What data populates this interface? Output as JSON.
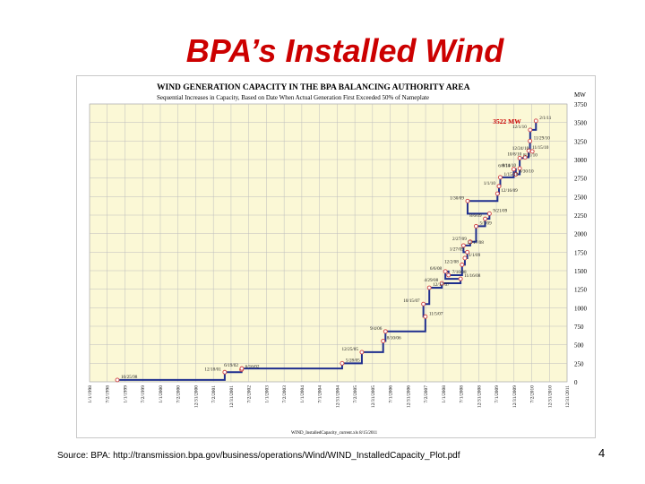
{
  "slide": {
    "title": "BPA’s Installed Wind",
    "source": "Source: BPA: http://transmission.bpa.gov/business/operations/Wind/WIND_InstalledCapacity_Plot.pdf",
    "number": "4"
  },
  "chart_data": {
    "type": "line",
    "title": "WIND GENERATION CAPACITY IN THE BPA BALANCING AUTHORITY AREA",
    "subtitle": "Sequential Increases in Capacity, Based on Date When Actual Generation First Exceeded 50% of Nameplate",
    "ylabel": "MW",
    "ylim": [
      0,
      3750
    ],
    "y_ticks": [
      0,
      250,
      500,
      750,
      1000,
      1250,
      1500,
      1750,
      2000,
      2250,
      2500,
      2750,
      3000,
      3250,
      3500,
      3750
    ],
    "x_ticks": [
      "1/1/1998",
      "7/2/1998",
      "1/1/1999",
      "7/2/1999",
      "1/1/2000",
      "7/2/2000",
      "12/31/2000",
      "7/2/2001",
      "12/31/2001",
      "7/2/2002",
      "1/1/2003",
      "7/2/2003",
      "1/1/2004",
      "7/1/2004",
      "12/31/2004",
      "7/2/2005",
      "12/31/2005",
      "7/1/2006",
      "12/31/2006",
      "7/2/2007",
      "1/1/2008",
      "7/1/2008",
      "12/31/2008",
      "7/1/2009",
      "12/31/2009",
      "7/2/2010",
      "12/31/2010",
      "12/31/2011"
    ],
    "xlim": [
      "1998-01-01",
      "2011-12-31"
    ],
    "grid": true,
    "line_color": "#1f2f8f",
    "marker_color": "#d04040",
    "highlight_label": "3522 MW",
    "highlight_color": "#cc0000",
    "footer_note": "WIND_InstalledCapacity_current.xls 8/15/2011",
    "series": [
      {
        "points": [
          {
            "x": "1998-10-25",
            "y": 25,
            "label": "10/25/98"
          },
          {
            "x": "2001-12-18",
            "y": 130,
            "label": "12/18/01"
          },
          {
            "x": "2002-06-16",
            "y": 165,
            "label": "6/16/02"
          },
          {
            "x": "2002-06-19",
            "y": 180,
            "label": "6/19/02"
          },
          {
            "x": "2005-05-28",
            "y": 250,
            "label": "5/28/05"
          },
          {
            "x": "2005-12-25",
            "y": 400,
            "label": "12/25/05"
          },
          {
            "x": "2006-08-10",
            "y": 550,
            "label": "8/10/06"
          },
          {
            "x": "2006-09-04",
            "y": 680,
            "label": "9/4/06"
          },
          {
            "x": "2007-11-05",
            "y": 880,
            "label": "11/5/07"
          },
          {
            "x": "2007-10-15",
            "y": 1050,
            "label": "10/15/07"
          },
          {
            "x": "2007-12-17",
            "y": 1270,
            "label": "12/17/07"
          },
          {
            "x": "2008-04-29",
            "y": 1330,
            "label": "4/29/08"
          },
          {
            "x": "2008-11-16",
            "y": 1390,
            "label": "11/16/08"
          },
          {
            "x": "2008-06-06",
            "y": 1490,
            "label": "6/6/08"
          },
          {
            "x": "2008-07-10",
            "y": 1440,
            "label": "7/10/08"
          },
          {
            "x": "2008-12-02",
            "y": 1580,
            "label": "12/2/08"
          },
          {
            "x": "2009-01-01",
            "y": 1670,
            "label": "1/1/09"
          },
          {
            "x": "2009-01-27",
            "y": 1750,
            "label": "1/27/09"
          },
          {
            "x": "2008-12-17",
            "y": 1840,
            "label": "12/17/08"
          },
          {
            "x": "2009-02-27",
            "y": 1890,
            "label": "2/27/09"
          },
          {
            "x": "2009-05-01",
            "y": 2100,
            "label": "5/1/09"
          },
          {
            "x": "2009-08-06",
            "y": 2200,
            "label": "8/6/09"
          },
          {
            "x": "2009-09-21",
            "y": 2270,
            "label": "9/21/09"
          },
          {
            "x": "2009-01-30",
            "y": 2440,
            "label": "1/30/09"
          },
          {
            "x": "2009-12-16",
            "y": 2540,
            "label": "12/16/09"
          },
          {
            "x": "2010-01-01",
            "y": 2640,
            "label": "1/1/10"
          },
          {
            "x": "2010-01-15",
            "y": 2760,
            "label": "1/15/10"
          },
          {
            "x": "2010-06-08",
            "y": 2870,
            "label": "6/8/10"
          },
          {
            "x": "2010-06-30",
            "y": 2800,
            "label": "6/30/10"
          },
          {
            "x": "2010-08-11",
            "y": 2880,
            "label": "8/11/10"
          },
          {
            "x": "2010-08-11",
            "y": 3020,
            "label": "8/11/10"
          },
          {
            "x": "2010-10-08",
            "y": 3030,
            "label": "10/8/10"
          },
          {
            "x": "2010-11-15",
            "y": 3120,
            "label": "11/15/10"
          },
          {
            "x": "2010-12-24",
            "y": 3110,
            "label": "12/24/10"
          },
          {
            "x": "2010-11-29",
            "y": 3250,
            "label": "11/29/10"
          },
          {
            "x": "2010-12-01",
            "y": 3400,
            "label": "12/1/10"
          },
          {
            "x": "2011-02-01",
            "y": 3522,
            "label": "2/1/11"
          }
        ]
      }
    ]
  }
}
